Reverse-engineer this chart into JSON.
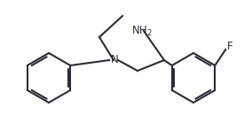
{
  "bg_color": "#ffffff",
  "line_color": "#2b2b3b",
  "line_width": 1.5,
  "font_size_label": 8.5,
  "figure_width": 2.84,
  "figure_height": 1.47,
  "dpi": 100
}
